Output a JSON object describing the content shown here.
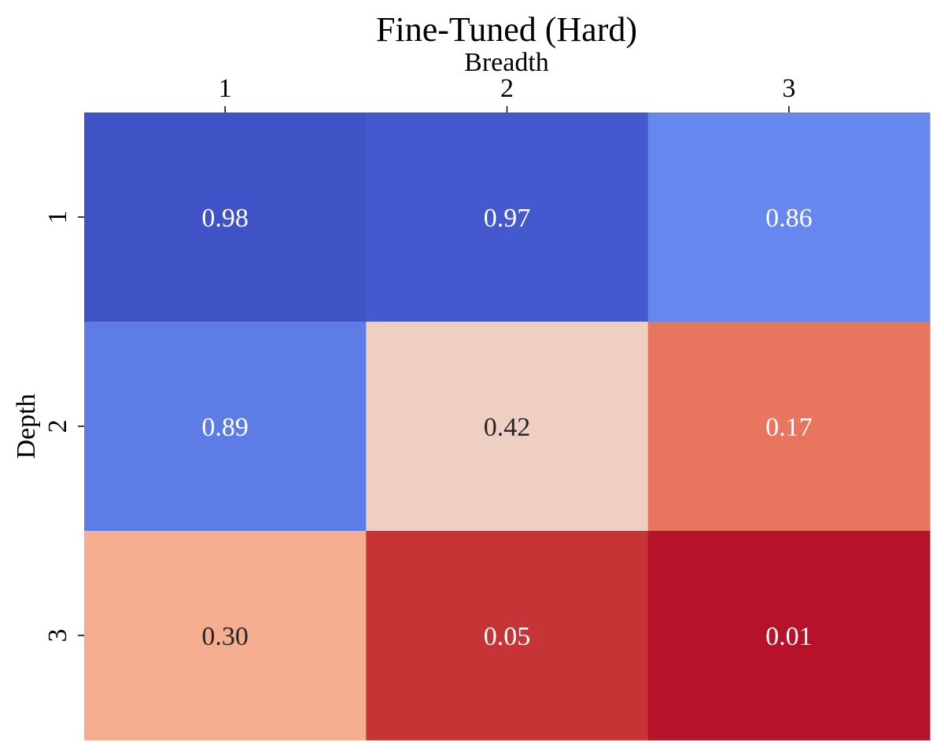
{
  "chart_data": {
    "type": "heatmap",
    "title": "Fine-Tuned (Hard)",
    "xlabel": "Breadth",
    "ylabel": "Depth",
    "x_categories": [
      "1",
      "2",
      "3"
    ],
    "y_categories": [
      "1",
      "2",
      "3"
    ],
    "values": [
      [
        0.98,
        0.97,
        0.86
      ],
      [
        0.89,
        0.42,
        0.17
      ],
      [
        0.3,
        0.05,
        0.01
      ]
    ],
    "value_labels": [
      [
        "0.98",
        "0.97",
        "0.86"
      ],
      [
        "0.89",
        "0.42",
        "0.17"
      ],
      [
        "0.30",
        "0.05",
        "0.01"
      ]
    ],
    "colormap": "coolwarm (reversed)",
    "cell_colors": [
      [
        "#3f53c7",
        "#4459cd",
        "#6687ed"
      ],
      [
        "#5d7ce6",
        "#efcfc2",
        "#e8765e"
      ],
      [
        "#f5ad8f",
        "#c73435",
        "#b61229"
      ]
    ],
    "label_colors": [
      [
        "#ffffff",
        "#ffffff",
        "#ffffff"
      ],
      [
        "#ffffff",
        "#262626",
        "#ffffff"
      ],
      [
        "#262626",
        "#ffffff",
        "#ffffff"
      ]
    ],
    "x_axis_position": "top",
    "grid": false,
    "colorbar": false
  }
}
